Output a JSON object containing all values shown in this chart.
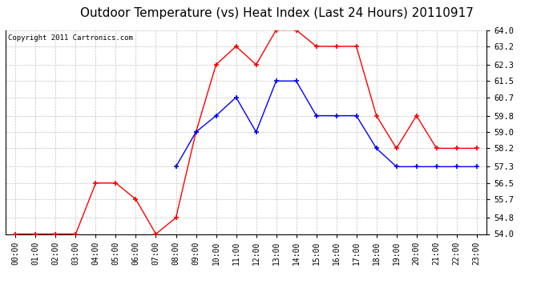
{
  "title": "Outdoor Temperature (vs) Heat Index (Last 24 Hours) 20110917",
  "copyright": "Copyright 2011 Cartronics.com",
  "x_labels": [
    "00:00",
    "01:00",
    "02:00",
    "03:00",
    "04:00",
    "05:00",
    "06:00",
    "07:00",
    "08:00",
    "09:00",
    "10:00",
    "11:00",
    "12:00",
    "13:00",
    "14:00",
    "15:00",
    "16:00",
    "17:00",
    "18:00",
    "19:00",
    "20:00",
    "21:00",
    "22:00",
    "23:00"
  ],
  "red_data": [
    54.0,
    54.0,
    54.0,
    54.0,
    56.5,
    56.5,
    55.7,
    54.0,
    54.8,
    59.0,
    62.3,
    63.2,
    62.3,
    64.0,
    64.0,
    63.2,
    63.2,
    63.2,
    59.8,
    58.2,
    59.8,
    58.2,
    58.2,
    58.2
  ],
  "blue_data": [
    null,
    null,
    null,
    null,
    null,
    null,
    null,
    null,
    57.3,
    59.0,
    59.8,
    60.7,
    59.0,
    61.5,
    61.5,
    59.8,
    59.8,
    59.8,
    58.2,
    57.3,
    57.3,
    57.3,
    57.3,
    57.3
  ],
  "ylim": [
    54.0,
    64.0
  ],
  "yticks": [
    54.0,
    54.8,
    55.7,
    56.5,
    57.3,
    58.2,
    59.0,
    59.8,
    60.7,
    61.5,
    62.3,
    63.2,
    64.0
  ],
  "red_color": "#ff0000",
  "blue_color": "#0000ff",
  "bg_color": "#ffffff",
  "plot_bg_color": "#ffffff",
  "grid_color": "#bbbbbb",
  "title_fontsize": 11,
  "copyright_fontsize": 6.5,
  "tick_fontsize": 7,
  "ytick_fontsize": 7.5
}
